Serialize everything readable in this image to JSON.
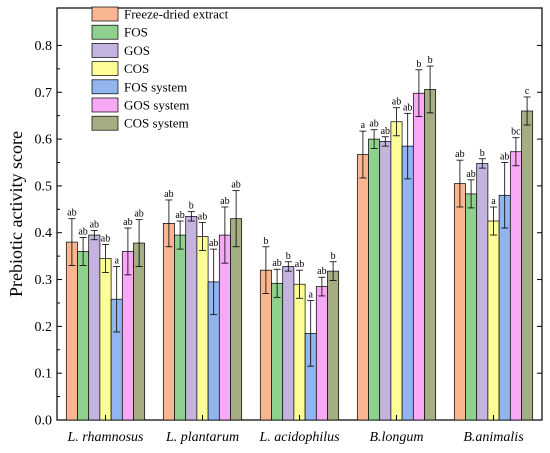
{
  "chart_data": {
    "type": "bar",
    "ylabel": "Prebiotic activity score",
    "xlabel": "",
    "ylim": [
      0.0,
      0.88
    ],
    "yticks": [
      0.0,
      0.1,
      0.2,
      0.3,
      0.4,
      0.5,
      0.6,
      0.7,
      0.8
    ],
    "ytick_labels": [
      "0.0",
      "0.1",
      "0.2",
      "0.3",
      "0.4",
      "0.5",
      "0.6",
      "0.7",
      "0.8"
    ],
    "categories": [
      "L. rhamnosus",
      "L. plantarum",
      "L. acidophilus",
      "B.longum",
      "B.animalis"
    ],
    "legend_position": "top-left",
    "series": [
      {
        "name": "Freeze-dried extract",
        "color": "#f9b690",
        "values": [
          0.38,
          0.42,
          0.32,
          0.567,
          0.505
        ],
        "errors": [
          0.05,
          0.05,
          0.05,
          0.05,
          0.05
        ],
        "labels": [
          "ab",
          "ab",
          "b",
          "a",
          "ab"
        ]
      },
      {
        "name": "FOS",
        "color": "#90d08e",
        "values": [
          0.36,
          0.395,
          0.292,
          0.6,
          0.483
        ],
        "errors": [
          0.03,
          0.03,
          0.03,
          0.02,
          0.03
        ],
        "labels": [
          "ab",
          "ab",
          "ab",
          "ab",
          "ab"
        ]
      },
      {
        "name": "GOS",
        "color": "#c3b3de",
        "values": [
          0.395,
          0.435,
          0.328,
          0.595,
          0.548
        ],
        "errors": [
          0.01,
          0.01,
          0.01,
          0.01,
          0.01
        ],
        "labels": [
          "ab",
          "b",
          "b",
          "ab",
          "b"
        ]
      },
      {
        "name": "COS",
        "color": "#fdfd98",
        "values": [
          0.345,
          0.392,
          0.29,
          0.637,
          0.425
        ],
        "errors": [
          0.03,
          0.03,
          0.03,
          0.03,
          0.03
        ],
        "labels": [
          "ab",
          "ab",
          "ab",
          "ab",
          "a"
        ]
      },
      {
        "name": "FOS system",
        "color": "#92b5f0",
        "values": [
          0.258,
          0.295,
          0.185,
          0.585,
          0.48
        ],
        "errors": [
          0.07,
          0.07,
          0.07,
          0.07,
          0.07
        ],
        "labels": [
          "a",
          "ab",
          "a",
          "ab",
          "ab"
        ]
      },
      {
        "name": "GOS system",
        "color": "#f7a9f5",
        "values": [
          0.36,
          0.395,
          0.285,
          0.698,
          0.573
        ],
        "errors": [
          0.05,
          0.06,
          0.02,
          0.05,
          0.03
        ],
        "labels": [
          "ab",
          "ab",
          "ab",
          "b",
          "bc"
        ]
      },
      {
        "name": "COS system",
        "color": "#a4ae82",
        "values": [
          0.378,
          0.43,
          0.318,
          0.706,
          0.66
        ],
        "errors": [
          0.05,
          0.06,
          0.02,
          0.05,
          0.03
        ],
        "labels": [
          "ab",
          "ab",
          "b",
          "b",
          "c"
        ]
      }
    ]
  }
}
